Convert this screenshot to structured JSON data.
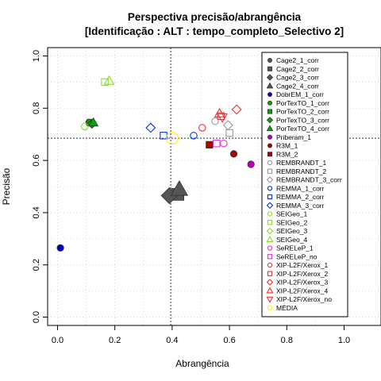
{
  "chart_data": {
    "type": "scatter",
    "title": "Perspectiva precisão/abrangência",
    "subtitle": "[Identificação : ALT : tempo_completo_Selectivo 2]",
    "xlabel": "Abrangência",
    "ylabel": "Precisão",
    "xlim": [
      0,
      1
    ],
    "ylim": [
      0,
      1
    ],
    "xticks": [
      "0.0",
      "0.2",
      "0.4",
      "0.6",
      "0.8",
      "1.0"
    ],
    "yticks": [
      "0.0",
      "0.2",
      "0.4",
      "0.6",
      "0.8",
      "1.0"
    ],
    "grid": true,
    "reference_lines": {
      "x": 0.395,
      "y": 0.685
    },
    "legend_position": "right",
    "series": [
      {
        "name": "Cage2_1_corr",
        "shape": "circle",
        "color": "#555555",
        "fill": true,
        "x": null,
        "y": null
      },
      {
        "name": "Cage2_2_corr",
        "shape": "square",
        "color": "#555555",
        "fill": true,
        "x": 0.42,
        "y": 0.47
      },
      {
        "name": "Cage2_3_corr",
        "shape": "diamond",
        "color": "#555555",
        "fill": true,
        "x": 0.39,
        "y": 0.465
      },
      {
        "name": "Cage2_4_corr",
        "shape": "triangle",
        "color": "#555555",
        "fill": true,
        "x": 0.425,
        "y": 0.49
      },
      {
        "name": "DobrEM_1_corr",
        "shape": "circle",
        "color": "#0000cc",
        "fill": true,
        "x": 0.01,
        "y": 0.265
      },
      {
        "name": "PorTexTO_1_corr",
        "shape": "circle",
        "color": "#00aa00",
        "fill": true,
        "x": 0.11,
        "y": 0.745
      },
      {
        "name": "PorTexTO_2_corr",
        "shape": "square",
        "color": "#00aa00",
        "fill": true,
        "x": 0.115,
        "y": 0.745
      },
      {
        "name": "PorTexTO_3_corr",
        "shape": "diamond",
        "color": "#00aa00",
        "fill": true,
        "x": 0.12,
        "y": 0.74
      },
      {
        "name": "PorTexTO_4_corr",
        "shape": "triangle",
        "color": "#00aa00",
        "fill": true,
        "x": 0.125,
        "y": 0.745
      },
      {
        "name": "Priberam_1",
        "shape": "circle",
        "color": "#bb00bb",
        "fill": true,
        "x": 0.675,
        "y": 0.585
      },
      {
        "name": "R3M_1",
        "shape": "circle",
        "color": "#aa0000",
        "fill": true,
        "x": 0.615,
        "y": 0.625
      },
      {
        "name": "R3M_2",
        "shape": "square",
        "color": "#aa0000",
        "fill": true,
        "x": 0.53,
        "y": 0.66
      },
      {
        "name": "REMBRANDT_1",
        "shape": "circle",
        "color": "#999999",
        "fill": false,
        "x": 0.55,
        "y": 0.75
      },
      {
        "name": "REMBRANDT_2",
        "shape": "square",
        "color": "#999999",
        "fill": false,
        "x": 0.6,
        "y": 0.705
      },
      {
        "name": "REMBRANDT_3_corr",
        "shape": "diamond",
        "color": "#999999",
        "fill": false,
        "x": 0.595,
        "y": 0.735
      },
      {
        "name": "REMMA_1_corr",
        "shape": "circle",
        "color": "#0033dd",
        "fill": false,
        "x": 0.475,
        "y": 0.695
      },
      {
        "name": "REMMA_2_corr",
        "shape": "square",
        "color": "#0033dd",
        "fill": false,
        "x": 0.37,
        "y": 0.695
      },
      {
        "name": "REMMA_3_corr",
        "shape": "diamond",
        "color": "#0033dd",
        "fill": false,
        "x": 0.325,
        "y": 0.725
      },
      {
        "name": "SEIGeo_1",
        "shape": "circle",
        "color": "#88dd22",
        "fill": false,
        "x": 0.095,
        "y": 0.73
      },
      {
        "name": "SEIGeo_2",
        "shape": "square",
        "color": "#88dd22",
        "fill": false,
        "x": 0.165,
        "y": 0.9
      },
      {
        "name": "SEIGeo_3",
        "shape": "diamond",
        "color": "#88dd22",
        "fill": false,
        "x": null,
        "y": null
      },
      {
        "name": "SEIGeo_4",
        "shape": "triangle",
        "color": "#88dd22",
        "fill": false,
        "x": 0.18,
        "y": 0.905
      },
      {
        "name": "SeRELeP_1",
        "shape": "circle",
        "color": "#dd33dd",
        "fill": false,
        "x": 0.58,
        "y": 0.665
      },
      {
        "name": "SeRELeP_no",
        "shape": "square",
        "color": "#dd33dd",
        "fill": false,
        "x": 0.555,
        "y": 0.665
      },
      {
        "name": "XIP-L2F/Xerox_1",
        "shape": "circle",
        "color": "#ee3333",
        "fill": false,
        "x": 0.505,
        "y": 0.725
      },
      {
        "name": "XIP-L2F/Xerox_2",
        "shape": "square",
        "color": "#ee3333",
        "fill": false,
        "x": 0.57,
        "y": 0.77
      },
      {
        "name": "XIP-L2F/Xerox_3",
        "shape": "diamond",
        "color": "#ee3333",
        "fill": false,
        "x": 0.625,
        "y": 0.795
      },
      {
        "name": "XIP-L2F/Xerox_4",
        "shape": "triangle",
        "color": "#ee3333",
        "fill": false,
        "x": 0.565,
        "y": 0.78
      },
      {
        "name": "XIP-L2F/Xerox_no",
        "shape": "triangle-down",
        "color": "#ee3333",
        "fill": false,
        "x": 0.575,
        "y": 0.765
      },
      {
        "name": "MÉDIA",
        "shape": "circle",
        "color": "#ffee00",
        "fill": false,
        "x": 0.4,
        "y": 0.685
      }
    ]
  }
}
